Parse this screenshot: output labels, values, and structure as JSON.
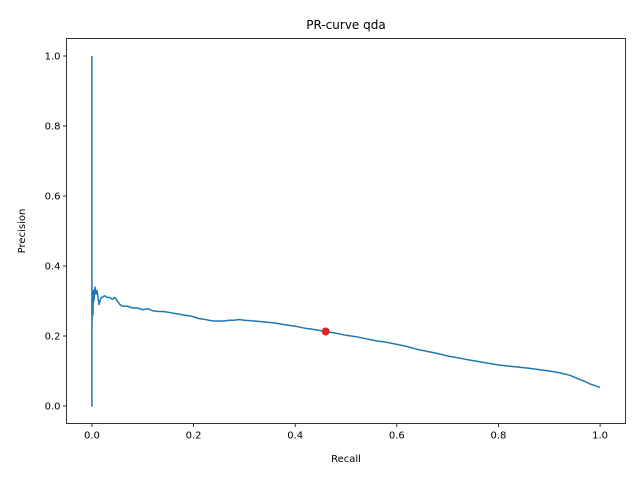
{
  "chart_data": {
    "type": "line",
    "title": "PR-curve qda",
    "xlabel": "Recall",
    "ylabel": "Precision",
    "xlim": [
      -0.05,
      1.05
    ],
    "ylim": [
      -0.05,
      1.05
    ],
    "x_ticks": [
      "0.0",
      "0.2",
      "0.4",
      "0.6",
      "0.8",
      "1.0"
    ],
    "y_ticks": [
      "0.0",
      "0.2",
      "0.4",
      "0.6",
      "0.8",
      "1.0"
    ],
    "grid": false,
    "series": [
      {
        "color": "#1f77b4",
        "x": [
          0,
          0,
          0,
          0,
          0.001,
          0.002,
          0.003,
          0.004,
          0.006,
          0.008,
          0.01,
          0.012,
          0.014,
          0.016,
          0.018,
          0.02,
          0.025,
          0.03,
          0.035,
          0.04,
          0.045,
          0.05,
          0.055,
          0.06,
          0.07,
          0.08,
          0.09,
          0.1,
          0.11,
          0.12,
          0.13,
          0.14,
          0.15,
          0.16,
          0.17,
          0.18,
          0.19,
          0.2,
          0.21,
          0.22,
          0.23,
          0.24,
          0.25,
          0.26,
          0.27,
          0.28,
          0.29,
          0.3,
          0.32,
          0.34,
          0.36,
          0.38,
          0.4,
          0.42,
          0.44,
          0.46,
          0.48,
          0.5,
          0.52,
          0.54,
          0.56,
          0.58,
          0.6,
          0.62,
          0.64,
          0.66,
          0.68,
          0.7,
          0.72,
          0.74,
          0.76,
          0.78,
          0.8,
          0.82,
          0.84,
          0.86,
          0.88,
          0.9,
          0.92,
          0.94,
          0.95,
          0.96,
          0.97,
          0.98,
          0.99,
          1.0
        ],
        "y": [
          1.0,
          0.0,
          0.37,
          0.22,
          0.3,
          0.26,
          0.33,
          0.3,
          0.34,
          0.32,
          0.33,
          0.31,
          0.29,
          0.3,
          0.31,
          0.31,
          0.315,
          0.31,
          0.31,
          0.305,
          0.31,
          0.3,
          0.29,
          0.285,
          0.285,
          0.28,
          0.28,
          0.275,
          0.278,
          0.272,
          0.27,
          0.27,
          0.268,
          0.265,
          0.263,
          0.26,
          0.258,
          0.255,
          0.25,
          0.248,
          0.245,
          0.243,
          0.243,
          0.243,
          0.245,
          0.245,
          0.247,
          0.245,
          0.243,
          0.24,
          0.237,
          0.232,
          0.228,
          0.222,
          0.218,
          0.213,
          0.208,
          0.202,
          0.198,
          0.192,
          0.186,
          0.182,
          0.176,
          0.17,
          0.162,
          0.156,
          0.15,
          0.143,
          0.138,
          0.132,
          0.127,
          0.122,
          0.117,
          0.114,
          0.111,
          0.108,
          0.104,
          0.1,
          0.095,
          0.088,
          0.082,
          0.076,
          0.07,
          0.063,
          0.058,
          0.053
        ]
      }
    ],
    "marker": {
      "x": 0.46,
      "y": 0.213,
      "color": "#d62728"
    }
  }
}
